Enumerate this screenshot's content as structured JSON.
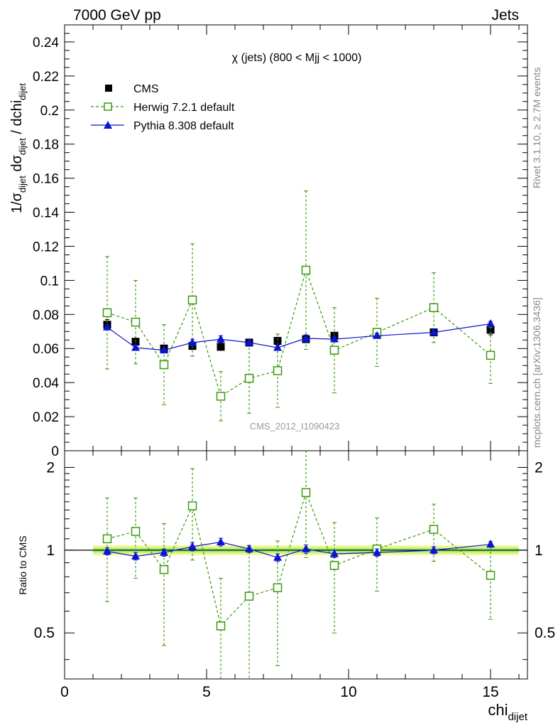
{
  "header": {
    "left": "7000 GeV pp",
    "right": "Jets"
  },
  "side_labels": {
    "rivet": "Rivet 3.1.10, ≥ 2.7M events",
    "mcplots": "mcplots.cern.ch [arXiv:1306.3436]"
  },
  "colors": {
    "cms": "#000000",
    "herwig": "#3a9a0a",
    "pythia": "#0a14d2",
    "band_outer": "#f4f58a",
    "band_inner": "#9ef27a"
  },
  "chart_data": [
    {
      "type": "scatter",
      "panel": "main",
      "title": "χ (jets) (800 < Mjj < 1000)",
      "watermark": "CMS_2012_I1090423",
      "ylabel_parts": [
        "1/σ",
        "dijet",
        " dσ",
        "dijet",
        " / dchi",
        "dijet"
      ],
      "xlim": [
        0,
        16.3
      ],
      "ylim": [
        0,
        0.25
      ],
      "yticks": [
        0,
        0.02,
        0.04,
        0.06,
        0.08,
        0.1,
        0.12,
        0.14,
        0.16,
        0.18,
        0.2,
        0.22,
        0.24
      ],
      "ytick_labels": [
        "0",
        "0.02",
        "0.04",
        "0.06",
        "0.08",
        "0.1",
        "0.12",
        "0.14",
        "0.16",
        "0.18",
        "0.2",
        "0.22",
        "0.24"
      ],
      "series": [
        {
          "name": "CMS",
          "marker": "square-filled",
          "x": [
            1.5,
            2.5,
            3.5,
            4.5,
            5.5,
            6.5,
            7.5,
            8.5,
            9.5,
            11,
            13,
            15
          ],
          "y": [
            0.074,
            0.064,
            0.06,
            0.0615,
            0.061,
            0.0635,
            0.0645,
            0.0655,
            0.0675,
            0.0685,
            0.0695,
            0.071
          ],
          "err": [
            0.003,
            0.002,
            0.002,
            0.002,
            0.002,
            0.002,
            0.002,
            0.002,
            0.002,
            0.002,
            0.002,
            0.003
          ]
        },
        {
          "name": "Herwig 7.2.1 default",
          "marker": "square-open",
          "line": "dashed",
          "x": [
            1.5,
            2.5,
            3.5,
            4.5,
            5.5,
            6.5,
            7.5,
            8.5,
            9.5,
            11,
            13,
            15
          ],
          "y": [
            0.081,
            0.0755,
            0.0505,
            0.0885,
            0.032,
            0.0425,
            0.047,
            0.106,
            0.059,
            0.0695,
            0.084,
            0.056
          ],
          "err": [
            0.033,
            0.0245,
            0.0235,
            0.033,
            0.0145,
            0.0205,
            0.0215,
            0.0465,
            0.025,
            0.02,
            0.0205,
            0.0165
          ]
        },
        {
          "name": "Pythia 8.308 default",
          "marker": "triangle-filled",
          "line": "solid",
          "x": [
            1.5,
            2.5,
            3.5,
            4.5,
            5.5,
            6.5,
            7.5,
            8.5,
            9.5,
            11,
            13,
            15
          ],
          "y": [
            0.0725,
            0.0605,
            0.059,
            0.0635,
            0.0655,
            0.0635,
            0.0605,
            0.066,
            0.0655,
            0.0675,
            0.0695,
            0.0745
          ],
          "err": [
            0.0015,
            0.0015,
            0.0015,
            0.002,
            0.002,
            0.0015,
            0.0015,
            0.002,
            0.0015,
            0.0015,
            0.0015,
            0.0015
          ]
        }
      ]
    },
    {
      "type": "scatter",
      "panel": "ratio",
      "ylabel": "Ratio to CMS",
      "xlabel_main": "chi",
      "xlabel_sub": "dijet",
      "xlim": [
        0,
        16.3
      ],
      "ylim": [
        0.34,
        2.3
      ],
      "xticks": [
        0,
        5,
        10,
        15
      ],
      "xtick_labels": [
        "0",
        "5",
        "10",
        "15"
      ],
      "yticks": [
        0.5,
        1,
        2
      ],
      "ytick_labels": [
        "0.5",
        "1",
        "2"
      ],
      "band": {
        "x_range": [
          1,
          16
        ],
        "outer": [
          0.96,
          1.04
        ],
        "inner": [
          0.98,
          1.02
        ]
      },
      "series": [
        {
          "name": "Herwig 7.2.1 default",
          "x": [
            1.5,
            2.5,
            3.5,
            4.5,
            5.5,
            6.5,
            7.5,
            8.5,
            9.5,
            11,
            13,
            15
          ],
          "y": [
            1.1,
            1.17,
            0.85,
            1.45,
            0.53,
            0.68,
            0.73,
            1.62,
            0.88,
            1.01,
            1.19,
            0.81
          ],
          "err": [
            0.45,
            0.38,
            0.4,
            0.53,
            0.26,
            0.34,
            0.35,
            0.68,
            0.38,
            0.3,
            0.28,
            0.25
          ]
        },
        {
          "name": "Pythia 8.308 default",
          "x": [
            1.5,
            2.5,
            3.5,
            4.5,
            5.5,
            6.5,
            7.5,
            8.5,
            9.5,
            11,
            13,
            15
          ],
          "y": [
            0.99,
            0.95,
            0.98,
            1.03,
            1.07,
            1.01,
            0.94,
            1.01,
            0.97,
            0.98,
            1.0,
            1.05
          ],
          "err": [
            0.03,
            0.03,
            0.03,
            0.035,
            0.035,
            0.03,
            0.03,
            0.035,
            0.03,
            0.03,
            0.03,
            0.025
          ]
        }
      ]
    }
  ]
}
